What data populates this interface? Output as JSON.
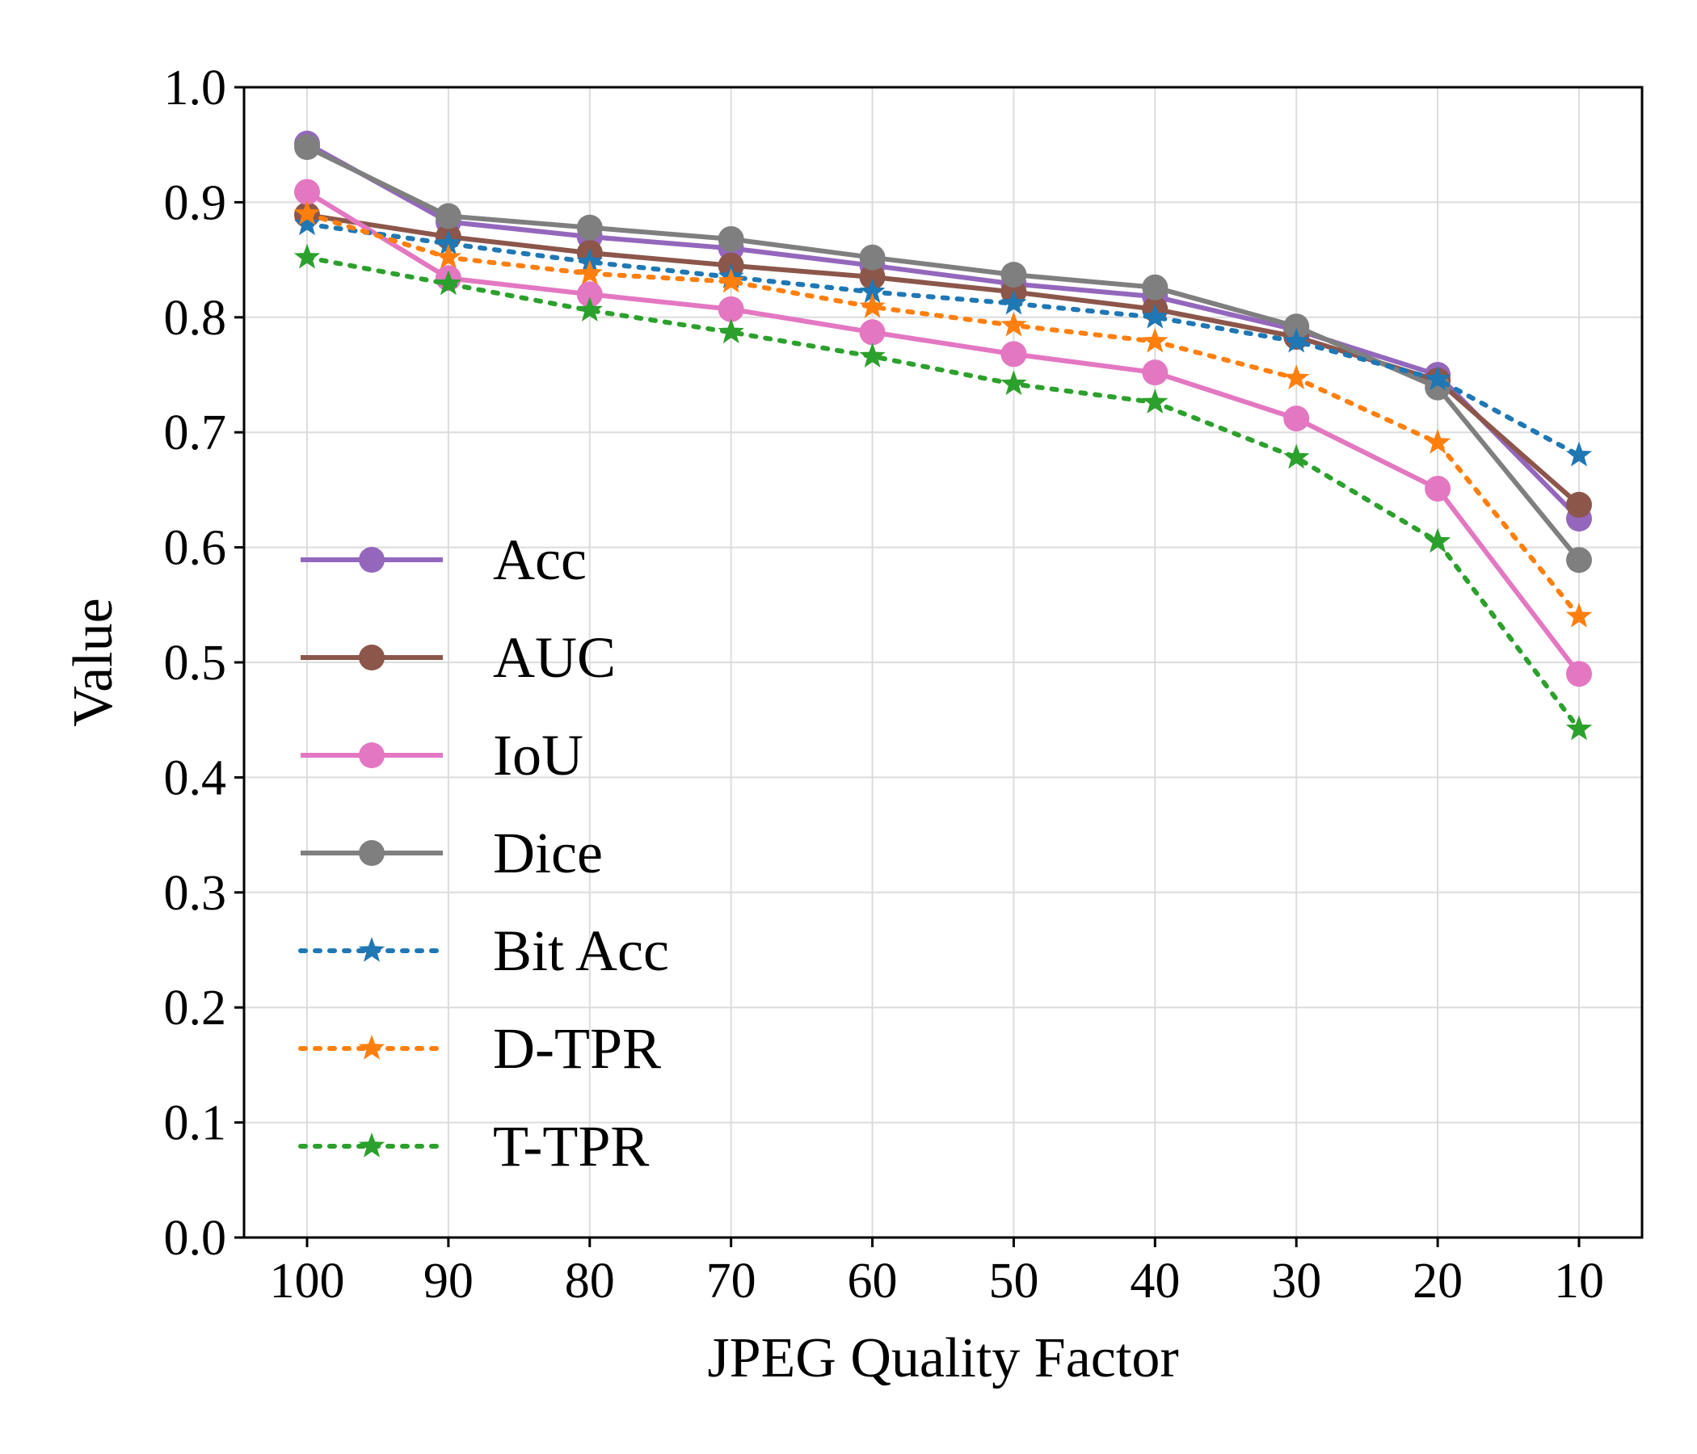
{
  "chart_data": {
    "type": "line",
    "title": "",
    "xlabel": "JPEG Quality Factor",
    "ylabel": "Value",
    "categories": [
      "100",
      "90",
      "80",
      "70",
      "60",
      "50",
      "40",
      "30",
      "20",
      "10"
    ],
    "ylim": [
      0.0,
      1.0
    ],
    "yticks": [
      "0.0",
      "0.1",
      "0.2",
      "0.3",
      "0.4",
      "0.5",
      "0.6",
      "0.7",
      "0.8",
      "0.9",
      "1.0"
    ],
    "grid": true,
    "legend_position": "center-left",
    "series": [
      {
        "name": "Acc",
        "color": "#9467bd",
        "line_style": "solid",
        "marker": "circle",
        "values": [
          0.951,
          0.883,
          0.87,
          0.86,
          0.845,
          0.829,
          0.818,
          0.789,
          0.75,
          0.625
        ]
      },
      {
        "name": "AUC",
        "color": "#8c564b",
        "line_style": "solid",
        "marker": "circle",
        "values": [
          0.889,
          0.87,
          0.856,
          0.845,
          0.835,
          0.822,
          0.807,
          0.783,
          0.745,
          0.637
        ]
      },
      {
        "name": "IoU",
        "color": "#e377c2",
        "line_style": "solid",
        "marker": "circle",
        "values": [
          0.909,
          0.834,
          0.82,
          0.807,
          0.787,
          0.768,
          0.752,
          0.712,
          0.651,
          0.49
        ]
      },
      {
        "name": "Dice",
        "color": "#7f7f7f",
        "line_style": "solid",
        "marker": "circle",
        "values": [
          0.948,
          0.888,
          0.878,
          0.868,
          0.852,
          0.837,
          0.826,
          0.792,
          0.739,
          0.589
        ]
      },
      {
        "name": "Bit Acc",
        "color": "#1f77b4",
        "line_style": "dotted",
        "marker": "star",
        "values": [
          0.881,
          0.864,
          0.848,
          0.835,
          0.822,
          0.812,
          0.8,
          0.779,
          0.746,
          0.68
        ]
      },
      {
        "name": "D-TPR",
        "color": "#ff7f0e",
        "line_style": "dotted",
        "marker": "star",
        "values": [
          0.89,
          0.852,
          0.838,
          0.831,
          0.809,
          0.793,
          0.779,
          0.747,
          0.691,
          0.54
        ]
      },
      {
        "name": "T-TPR",
        "color": "#2ca02c",
        "line_style": "dotted",
        "marker": "star",
        "values": [
          0.852,
          0.829,
          0.806,
          0.787,
          0.766,
          0.742,
          0.726,
          0.678,
          0.605,
          0.442
        ]
      }
    ]
  }
}
